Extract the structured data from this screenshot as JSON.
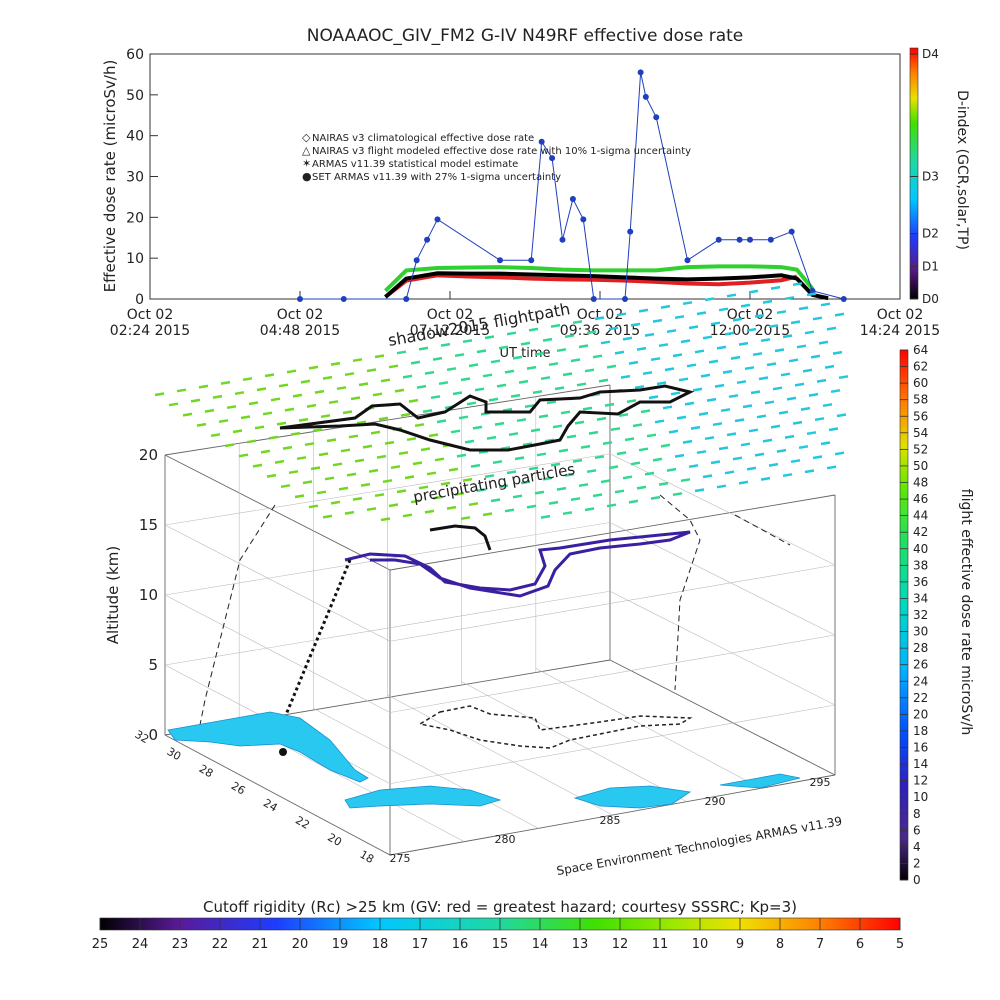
{
  "page": {
    "title": "NOAAAOC_GIV_FM2 G-IV    N49RF   effective dose rate",
    "footer_credit": "Space Environment Technologies ARMAS v11.39",
    "cutoff_title": "Cutoff rigidity (Rc) >25 km (GV: red = greatest hazard; courtesy SSSRC; Kp=3)"
  },
  "chart_data": [
    {
      "id": "dose-rate-timeseries",
      "type": "line",
      "title": "NOAAAOC_GIV_FM2 G-IV    N49RF   effective dose rate",
      "xlabel": "UT time",
      "ylabel": "Effective dose rate (microSv/h)",
      "y2label": "D-index (GCR,solar,TP)",
      "ylim": [
        0,
        60
      ],
      "yticks": [
        "0",
        "10",
        "20",
        "30",
        "40",
        "50",
        "60"
      ],
      "xlim": [
        "02:24",
        "14:24"
      ],
      "x_tick_labels": [
        {
          "date": "Oct 02",
          "time": "02:24 2015"
        },
        {
          "date": "Oct 02",
          "time": "04:48 2015"
        },
        {
          "date": "Oct 02",
          "time": "07:12 2015"
        },
        {
          "date": "Oct 02",
          "time": "09:36 2015"
        },
        {
          "date": "Oct 02",
          "time": "12:00 2015"
        },
        {
          "date": "Oct 02",
          "time": "14:24 2015"
        }
      ],
      "d_index_ticks": [
        "D0",
        "D1",
        "D2",
        "D3",
        "D4"
      ],
      "d_index_values": [
        0,
        8,
        16,
        30,
        60
      ],
      "legend_position": "center",
      "series": [
        {
          "name": "NAIRAS v3 climatological effective dose rate",
          "color": "#e02020",
          "x": [
            "06:10",
            "06:30",
            "07:00",
            "07:30",
            "08:00",
            "08:30",
            "09:00",
            "09:30",
            "10:00",
            "10:30",
            "11:00",
            "11:30",
            "12:00",
            "12:30",
            "12:45"
          ],
          "y": [
            0.5,
            4.5,
            5.8,
            5.5,
            5.3,
            5.0,
            4.8,
            4.7,
            4.5,
            4.2,
            3.8,
            3.6,
            4.0,
            4.6,
            5.5
          ]
        },
        {
          "name": "NAIRAS v3 flight modeled effective dose rate with 10% 1-sigma uncertainty",
          "color": "#000000",
          "x": [
            "06:10",
            "06:30",
            "07:00",
            "07:30",
            "08:00",
            "08:30",
            "09:00",
            "09:30",
            "10:00",
            "10:30",
            "11:00",
            "11:30",
            "12:00",
            "12:30",
            "12:45",
            "13:00",
            "13:15"
          ],
          "y": [
            0.5,
            5.0,
            6.3,
            6.2,
            6.2,
            6.0,
            5.8,
            5.6,
            5.3,
            5.0,
            4.8,
            5.0,
            5.3,
            5.8,
            5.0,
            1.0,
            0.2
          ]
        },
        {
          "name": "ARMAS v11.39 statistical model estimate",
          "color": "#30d030",
          "x": [
            "06:10",
            "06:30",
            "07:00",
            "07:30",
            "08:00",
            "08:30",
            "09:00",
            "09:30",
            "10:00",
            "10:30",
            "11:00",
            "11:30",
            "12:00",
            "12:30",
            "12:45",
            "13:00"
          ],
          "y": [
            2.0,
            7.0,
            7.6,
            7.7,
            7.8,
            7.6,
            7.2,
            7.0,
            7.0,
            7.0,
            7.8,
            8.0,
            8.0,
            7.8,
            7.2,
            2.5
          ]
        },
        {
          "name": "SET ARMAS v11.39 with 27% 1-sigma uncertainty",
          "color": "#1f3fbf",
          "x": [
            "04:48",
            "05:30",
            "06:30",
            "06:40",
            "06:50",
            "07:00",
            "08:00",
            "08:30",
            "08:40",
            "08:50",
            "09:00",
            "09:10",
            "09:20",
            "09:30",
            "10:00",
            "10:05",
            "10:15",
            "10:20",
            "10:30",
            "11:00",
            "11:30",
            "11:50",
            "12:00",
            "12:20",
            "12:40",
            "13:00",
            "13:30"
          ],
          "y": [
            0,
            0,
            0,
            9.5,
            14.5,
            19.5,
            9.5,
            9.5,
            38.5,
            34.5,
            14.5,
            24.5,
            19.5,
            0,
            0,
            16.5,
            55.5,
            49.5,
            44.5,
            9.5,
            14.5,
            14.5,
            14.5,
            14.5,
            16.5,
            2.0,
            0
          ]
        }
      ]
    },
    {
      "id": "flight-3d-dose",
      "type": "scatter",
      "title": "shadow2015 flightpath",
      "annotation": "precipitating particles",
      "zlabel": "Altitude (km)",
      "zticks": [
        "0",
        "5",
        "10",
        "15",
        "20"
      ],
      "zlim": [
        0,
        20
      ],
      "latitude_ticks": [
        "18",
        "20",
        "22",
        "24",
        "26",
        "28",
        "30",
        "32"
      ],
      "longitude_ticks": [
        "275",
        "280",
        "285",
        "290",
        "295"
      ],
      "colorbar_label": "flight effective dose rate microSv/h",
      "colorbar_ticks": [
        "0",
        "2",
        "4",
        "6",
        "8",
        "10",
        "12",
        "14",
        "16",
        "18",
        "20",
        "22",
        "24",
        "26",
        "28",
        "30",
        "32",
        "34",
        "36",
        "38",
        "40",
        "42",
        "44",
        "46",
        "48",
        "50",
        "52",
        "54",
        "56",
        "58",
        "60",
        "62",
        "64"
      ]
    },
    {
      "id": "cutoff-rigidity",
      "type": "heatmap",
      "title": "Cutoff rigidity (Rc) >25 km (GV: red = greatest hazard; courtesy SSSRC; Kp=3)",
      "colorbar_ticks": [
        "25",
        "24",
        "23",
        "22",
        "21",
        "20",
        "19",
        "18",
        "17",
        "16",
        "15",
        "14",
        "13",
        "12",
        "11",
        "10",
        "9",
        "8",
        "7",
        "6",
        "5"
      ]
    }
  ]
}
